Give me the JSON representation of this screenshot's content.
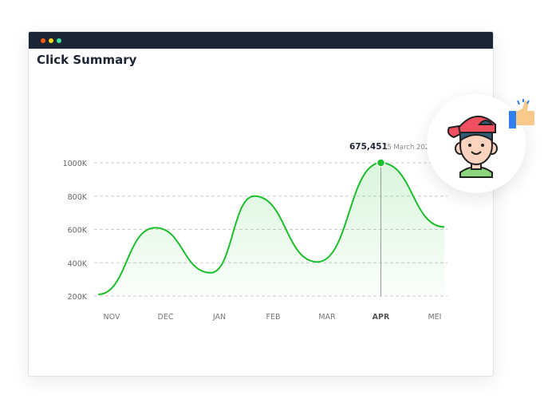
{
  "window": {
    "dots": [
      "#f45b11",
      "#f5d90a",
      "#3de19a"
    ]
  },
  "title": "Click Summary",
  "tooltip": {
    "value": "675,451",
    "date": "(5 March 202"
  },
  "chart_data": {
    "type": "area",
    "title": "Click Summary",
    "categories": [
      "NOV",
      "DEC",
      "JAN",
      "FEB",
      "MAR",
      "APR",
      "MEI"
    ],
    "highlighted_category": "APR",
    "y_ticks": [
      "200K",
      "400K",
      "600K",
      "800K",
      "1000K"
    ],
    "ylim": [
      200,
      1000
    ],
    "grid": true,
    "color": "#1bbf2b",
    "points": [
      {
        "x": -0.25,
        "y": 210
      },
      {
        "x": 0.81,
        "y": 610
      },
      {
        "x": 1.84,
        "y": 340
      },
      {
        "x": 2.65,
        "y": 800
      },
      {
        "x": 3.82,
        "y": 405
      },
      {
        "x": 5.0,
        "y": 1000
      },
      {
        "x": 6.18,
        "y": 615
      }
    ],
    "marker": {
      "x": 5.0,
      "y": 1000
    }
  }
}
